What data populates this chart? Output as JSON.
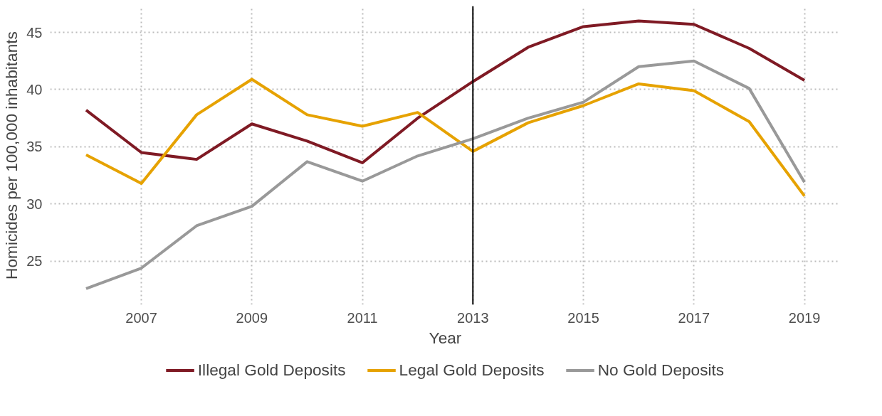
{
  "chart_data": {
    "type": "line",
    "xlabel": "Year",
    "ylabel": "Homicides per 100,000 inhabitants",
    "x": [
      2006,
      2007,
      2008,
      2009,
      2010,
      2011,
      2012,
      2013,
      2014,
      2015,
      2016,
      2017,
      2018,
      2019
    ],
    "series": [
      {
        "name": "Illegal Gold Deposits",
        "color": "#7f1a24",
        "values": [
          38.2,
          34.5,
          33.9,
          37.0,
          35.5,
          33.6,
          37.5,
          40.7,
          43.7,
          45.5,
          46.0,
          45.7,
          43.6,
          40.8
        ]
      },
      {
        "name": "Legal Gold Deposits",
        "color": "#e6a200",
        "values": [
          34.3,
          31.8,
          37.8,
          40.9,
          37.8,
          36.8,
          38.0,
          34.6,
          37.1,
          38.6,
          40.5,
          39.9,
          37.2,
          30.7
        ]
      },
      {
        "name": "No Gold Deposits",
        "color": "#999999",
        "values": [
          22.6,
          24.4,
          28.1,
          29.8,
          33.7,
          32.0,
          34.2,
          35.7,
          37.5,
          38.9,
          42.0,
          42.5,
          40.1,
          31.9
        ]
      }
    ],
    "xlim": [
      2005.35,
      2019.65
    ],
    "ylim": [
      21.2,
      47.3
    ],
    "xticks": [
      2007,
      2009,
      2011,
      2013,
      2015,
      2017,
      2019
    ],
    "yticks": [
      25,
      30,
      35,
      40,
      45
    ],
    "ref_lines": [
      {
        "axis": "x",
        "value": 2013,
        "color": "#000000"
      }
    ],
    "grid": true,
    "legend": "bottom",
    "marker": "none",
    "line_style": "solid"
  }
}
